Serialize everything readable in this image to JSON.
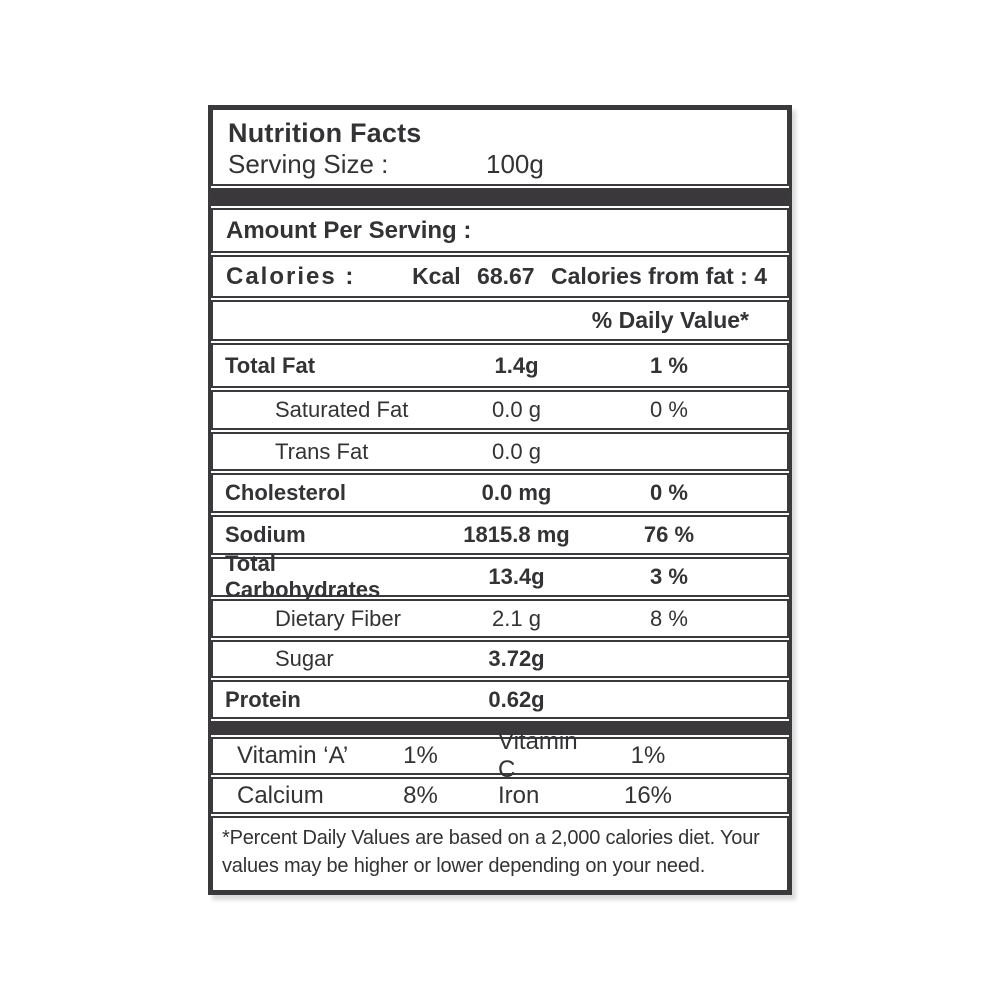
{
  "label": {
    "title": "Nutrition Facts",
    "serving": {
      "label": "Serving Size :",
      "value": "100g"
    },
    "amount_per_serving": "Amount Per Serving :",
    "calories": {
      "label": "Calories :",
      "kcal_label": "Kcal",
      "kcal_value": "68.67",
      "from_fat": "Calories from fat : 4"
    },
    "daily_value_header": "% Daily Value*",
    "nutrients": [
      {
        "label": "Total Fat",
        "amount": "1.4g",
        "dv": "1 %"
      },
      {
        "label": "Saturated Fat",
        "amount": "0.0 g",
        "dv": "0 %"
      },
      {
        "label": "Trans Fat",
        "amount": "0.0 g",
        "dv": ""
      },
      {
        "label": "Cholesterol",
        "amount": "0.0 mg",
        "dv": "0 %"
      },
      {
        "label": "Sodium",
        "amount": "1815.8 mg",
        "dv": "76 %"
      },
      {
        "label": "Total Carbohydrates",
        "amount": "13.4g",
        "dv": "3 %"
      },
      {
        "label": "Dietary Fiber",
        "amount": "2.1 g",
        "dv": "8 %"
      },
      {
        "label": "Sugar",
        "amount": "3.72g",
        "dv": ""
      },
      {
        "label": "Protein",
        "amount": "0.62g",
        "dv": ""
      }
    ],
    "micronutrients": [
      {
        "name": "Vitamin ‘A’",
        "value": "1%",
        "name2": "Vitamin C",
        "value2": "1%"
      },
      {
        "name": "Calcium",
        "value": "8%",
        "name2": "Iron",
        "value2": "16%"
      }
    ],
    "footnote_lines": [
      "*Percent Daily Values are based on a 2,000 calories diet. Your",
      "values may be higher or lower depending on your need."
    ],
    "colors": {
      "border": "#3a3a3c",
      "band": "#3a383b",
      "text": "#333335"
    }
  }
}
